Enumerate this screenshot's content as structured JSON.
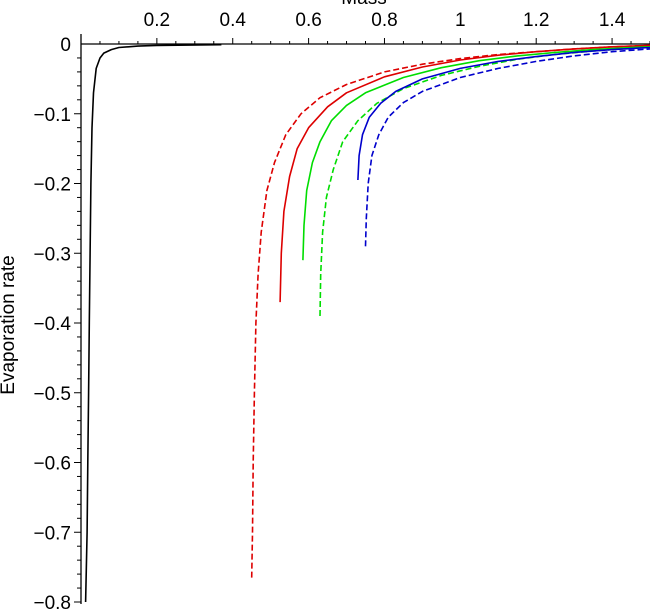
{
  "chart_data": {
    "type": "line",
    "title": "",
    "xlabel": "Mass",
    "ylabel": "Evaporation rate",
    "xlim": [
      0,
      1.5
    ],
    "ylim": [
      -0.8,
      0.01
    ],
    "x_ticks": [
      {
        "value": 0.2,
        "label": "0.2"
      },
      {
        "value": 0.4,
        "label": "0.4"
      },
      {
        "value": 0.6,
        "label": "0.6"
      },
      {
        "value": 0.8,
        "label": "0.8"
      },
      {
        "value": 1.0,
        "label": "1"
      },
      {
        "value": 1.2,
        "label": "1.2"
      },
      {
        "value": 1.4,
        "label": "1.4"
      }
    ],
    "y_ticks": [
      {
        "value": 0,
        "label": "0"
      },
      {
        "value": -0.1,
        "label": "−0.1"
      },
      {
        "value": -0.2,
        "label": "−0.2"
      },
      {
        "value": -0.3,
        "label": "−0.3"
      },
      {
        "value": -0.4,
        "label": "−0.4"
      },
      {
        "value": -0.5,
        "label": "−0.5"
      },
      {
        "value": -0.6,
        "label": "−0.6"
      },
      {
        "value": -0.7,
        "label": "−0.7"
      },
      {
        "value": -0.8,
        "label": "−0.8"
      }
    ],
    "grid": false,
    "legend": "none",
    "series": [
      {
        "color": "#000000",
        "dash": "solid",
        "points": [
          [
            0.012,
            -0.8
          ],
          [
            0.016,
            -0.7
          ],
          [
            0.018,
            -0.6
          ],
          [
            0.02,
            -0.5
          ],
          [
            0.022,
            -0.4
          ],
          [
            0.024,
            -0.3
          ],
          [
            0.026,
            -0.2
          ],
          [
            0.029,
            -0.12
          ],
          [
            0.033,
            -0.07
          ],
          [
            0.04,
            -0.035
          ],
          [
            0.05,
            -0.02
          ],
          [
            0.06,
            -0.013
          ],
          [
            0.08,
            -0.008
          ],
          [
            0.1,
            -0.005
          ],
          [
            0.15,
            -0.003
          ],
          [
            0.2,
            -0.002
          ],
          [
            0.37,
            -0.001
          ]
        ]
      },
      {
        "color": "#dd0000",
        "dash": "dashed",
        "points": [
          [
            0.45,
            -0.765
          ],
          [
            0.452,
            -0.7
          ],
          [
            0.454,
            -0.6
          ],
          [
            0.457,
            -0.5
          ],
          [
            0.461,
            -0.4
          ],
          [
            0.467,
            -0.33
          ],
          [
            0.475,
            -0.27
          ],
          [
            0.49,
            -0.21
          ],
          [
            0.51,
            -0.17
          ],
          [
            0.54,
            -0.13
          ],
          [
            0.58,
            -0.1
          ],
          [
            0.63,
            -0.077
          ],
          [
            0.7,
            -0.058
          ],
          [
            0.8,
            -0.04
          ],
          [
            0.9,
            -0.029
          ],
          [
            1.0,
            -0.021
          ],
          [
            1.1,
            -0.015
          ],
          [
            1.2,
            -0.011
          ],
          [
            1.3,
            -0.007
          ],
          [
            1.4,
            -0.004
          ],
          [
            1.5,
            -0.002
          ]
        ]
      },
      {
        "color": "#dd0000",
        "dash": "solid",
        "points": [
          [
            0.525,
            -0.37
          ],
          [
            0.528,
            -0.3
          ],
          [
            0.535,
            -0.24
          ],
          [
            0.55,
            -0.19
          ],
          [
            0.57,
            -0.15
          ],
          [
            0.6,
            -0.12
          ],
          [
            0.65,
            -0.09
          ],
          [
            0.7,
            -0.07
          ],
          [
            0.8,
            -0.047
          ],
          [
            0.9,
            -0.033
          ],
          [
            1.0,
            -0.023
          ],
          [
            1.1,
            -0.016
          ],
          [
            1.2,
            -0.011
          ],
          [
            1.3,
            -0.007
          ],
          [
            1.4,
            -0.004
          ],
          [
            1.5,
            -0.002
          ]
        ]
      },
      {
        "color": "#00dd00",
        "dash": "solid",
        "points": [
          [
            0.585,
            -0.31
          ],
          [
            0.588,
            -0.26
          ],
          [
            0.595,
            -0.21
          ],
          [
            0.61,
            -0.17
          ],
          [
            0.63,
            -0.14
          ],
          [
            0.66,
            -0.11
          ],
          [
            0.7,
            -0.088
          ],
          [
            0.75,
            -0.07
          ],
          [
            0.85,
            -0.048
          ],
          [
            0.95,
            -0.034
          ],
          [
            1.05,
            -0.024
          ],
          [
            1.15,
            -0.017
          ],
          [
            1.25,
            -0.012
          ],
          [
            1.35,
            -0.008
          ],
          [
            1.45,
            -0.005
          ],
          [
            1.5,
            -0.004
          ]
        ]
      },
      {
        "color": "#00dd00",
        "dash": "dashed",
        "points": [
          [
            0.63,
            -0.39
          ],
          [
            0.632,
            -0.33
          ],
          [
            0.637,
            -0.27
          ],
          [
            0.647,
            -0.22
          ],
          [
            0.665,
            -0.18
          ],
          [
            0.69,
            -0.14
          ],
          [
            0.73,
            -0.11
          ],
          [
            0.78,
            -0.085
          ],
          [
            0.85,
            -0.064
          ],
          [
            0.95,
            -0.045
          ],
          [
            1.05,
            -0.032
          ],
          [
            1.15,
            -0.022
          ],
          [
            1.25,
            -0.015
          ],
          [
            1.35,
            -0.01
          ],
          [
            1.45,
            -0.006
          ],
          [
            1.5,
            -0.005
          ]
        ]
      },
      {
        "color": "#0000cc",
        "dash": "solid",
        "points": [
          [
            0.73,
            -0.195
          ],
          [
            0.733,
            -0.16
          ],
          [
            0.742,
            -0.13
          ],
          [
            0.76,
            -0.105
          ],
          [
            0.79,
            -0.085
          ],
          [
            0.83,
            -0.068
          ],
          [
            0.9,
            -0.05
          ],
          [
            1.0,
            -0.035
          ],
          [
            1.1,
            -0.025
          ],
          [
            1.2,
            -0.018
          ],
          [
            1.3,
            -0.012
          ],
          [
            1.4,
            -0.008
          ],
          [
            1.5,
            -0.005
          ]
        ]
      },
      {
        "color": "#0000cc",
        "dash": "dashed",
        "points": [
          [
            0.75,
            -0.29
          ],
          [
            0.752,
            -0.25
          ],
          [
            0.757,
            -0.2
          ],
          [
            0.767,
            -0.16
          ],
          [
            0.785,
            -0.13
          ],
          [
            0.81,
            -0.105
          ],
          [
            0.85,
            -0.084
          ],
          [
            0.9,
            -0.068
          ],
          [
            1.0,
            -0.048
          ],
          [
            1.1,
            -0.035
          ],
          [
            1.2,
            -0.025
          ],
          [
            1.3,
            -0.017
          ],
          [
            1.4,
            -0.011
          ],
          [
            1.5,
            -0.007
          ]
        ]
      }
    ]
  }
}
